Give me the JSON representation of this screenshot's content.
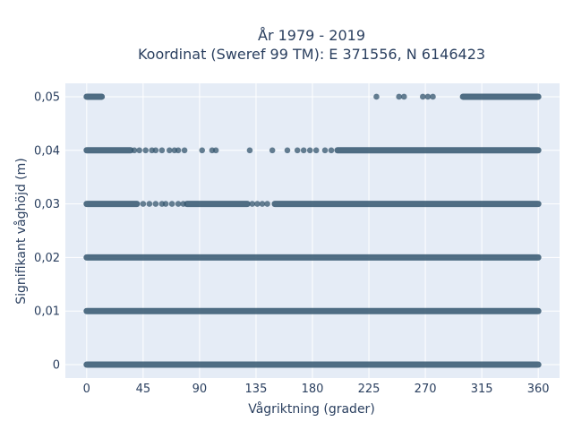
{
  "chart_data": {
    "type": "scatter",
    "title": "År 1979 - 2019",
    "subtitle": "Koordinat (Sweref 99 TM): E 371556, N 6146423",
    "xlabel": "Vågriktning (grader)",
    "ylabel": "Signifikant våghöjd (m)",
    "xlim": [
      -17,
      377
    ],
    "ylim": [
      -0.0025,
      0.0525
    ],
    "x_ticks": [
      0,
      45,
      90,
      135,
      180,
      225,
      270,
      315,
      360
    ],
    "x_tick_labels": [
      "0",
      "45",
      "90",
      "135",
      "180",
      "225",
      "270",
      "315",
      "360"
    ],
    "y_ticks": [
      0,
      0.01,
      0.02,
      0.03,
      0.04,
      0.05
    ],
    "y_tick_labels": [
      "0",
      "0,01",
      "0,02",
      "0,03",
      "0,04",
      "0,05"
    ],
    "grid": true,
    "marker_color": "#34566e",
    "series": [
      {
        "y": 0.05,
        "dense_ranges": [
          [
            0,
            12
          ],
          [
            300,
            360
          ]
        ],
        "points": [
          231,
          249,
          253,
          268,
          272,
          276
        ]
      },
      {
        "y": 0.04,
        "dense_ranges": [
          [
            0,
            35
          ],
          [
            200,
            360
          ]
        ],
        "points": [
          38,
          42,
          47,
          52,
          55,
          60,
          66,
          70,
          73,
          78,
          92,
          100,
          103,
          130,
          148,
          160,
          168,
          173,
          178,
          183,
          190,
          195
        ]
      },
      {
        "y": 0.03,
        "dense_ranges": [
          [
            0,
            40
          ],
          [
            80,
            128
          ],
          [
            150,
            360
          ]
        ],
        "points": [
          45,
          50,
          55,
          60,
          63,
          68,
          73,
          77,
          132,
          136,
          140,
          144
        ]
      },
      {
        "y": 0.02,
        "dense_ranges": [
          [
            0,
            360
          ]
        ],
        "points": []
      },
      {
        "y": 0.01,
        "dense_ranges": [
          [
            0,
            360
          ]
        ],
        "points": []
      },
      {
        "y": 0,
        "dense_ranges": [
          [
            0,
            360
          ]
        ],
        "points": []
      }
    ]
  }
}
